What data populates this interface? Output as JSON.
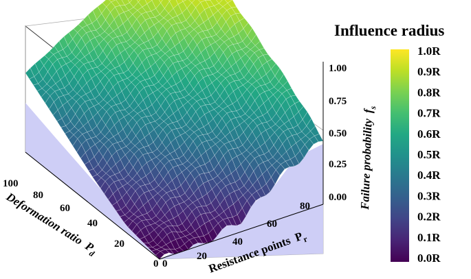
{
  "chart_data": {
    "type": "surface3d",
    "title": "",
    "x_axis": {
      "label": "Resistance points",
      "symbol": "P",
      "subscript": "r",
      "ticks": [
        "0",
        "20",
        "40",
        "60",
        "80"
      ],
      "range": [
        0,
        100
      ]
    },
    "y_axis": {
      "label": "Deformation ratio",
      "symbol": "P",
      "subscript": "d",
      "ticks": [
        "0",
        "20",
        "40",
        "60",
        "80",
        "100"
      ],
      "range": [
        0,
        100
      ]
    },
    "z_axis": {
      "label": "Failure probability",
      "symbol": "f",
      "subscript": "s",
      "ticks": [
        "0.00",
        "0.25",
        "0.50",
        "0.75",
        "1.00"
      ],
      "range": [
        0,
        1
      ]
    },
    "colorbar": {
      "title": "Influence radius",
      "ticks": [
        "1.0R",
        "0.9R",
        "0.8R",
        "0.7R",
        "0.6R",
        "0.5R",
        "0.4R",
        "0.3R",
        "0.2R",
        "0.1R",
        "0.0R"
      ],
      "colormap": "viridis"
    },
    "surface_grid": {
      "x": [
        0,
        25,
        50,
        75,
        100
      ],
      "y": [
        0,
        25,
        50,
        75,
        100
      ],
      "z": [
        [
          0.0,
          0.0,
          0.08,
          0.3,
          0.45
        ],
        [
          0.05,
          0.2,
          0.35,
          0.48,
          0.65
        ],
        [
          0.2,
          0.38,
          0.52,
          0.65,
          0.8
        ],
        [
          0.38,
          0.55,
          0.7,
          0.85,
          0.97
        ],
        [
          0.55,
          0.72,
          0.88,
          1.0,
          1.0
        ]
      ]
    }
  }
}
